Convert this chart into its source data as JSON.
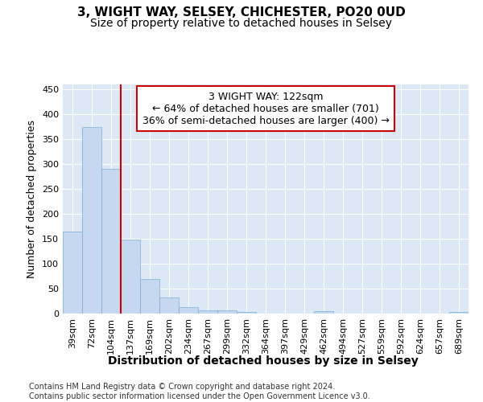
{
  "title": "3, WIGHT WAY, SELSEY, CHICHESTER, PO20 0UD",
  "subtitle": "Size of property relative to detached houses in Selsey",
  "xlabel": "Distribution of detached houses by size in Selsey",
  "ylabel": "Number of detached properties",
  "categories": [
    "39sqm",
    "72sqm",
    "104sqm",
    "137sqm",
    "169sqm",
    "202sqm",
    "234sqm",
    "267sqm",
    "299sqm",
    "332sqm",
    "364sqm",
    "397sqm",
    "429sqm",
    "462sqm",
    "494sqm",
    "527sqm",
    "559sqm",
    "592sqm",
    "624sqm",
    "657sqm",
    "689sqm"
  ],
  "values": [
    165,
    375,
    290,
    148,
    70,
    33,
    13,
    7,
    6,
    3,
    0,
    0,
    0,
    5,
    0,
    0,
    0,
    0,
    0,
    0,
    3
  ],
  "bar_color": "#c5d8f0",
  "bar_edge_color": "#7aadd4",
  "vline_x": 2.5,
  "vline_color": "#cc0000",
  "annotation_line1": "3 WIGHT WAY: 122sqm",
  "annotation_line2": "← 64% of detached houses are smaller (701)",
  "annotation_line3": "36% of semi-detached houses are larger (400) →",
  "annotation_box_color": "#ffffff",
  "annotation_box_edge": "#cc0000",
  "fig_bg_color": "#ffffff",
  "plot_bg_color": "#dce8f5",
  "grid_color": "#ffffff",
  "footer": "Contains HM Land Registry data © Crown copyright and database right 2024.\nContains public sector information licensed under the Open Government Licence v3.0.",
  "ylim": [
    0,
    460
  ],
  "yticks": [
    0,
    50,
    100,
    150,
    200,
    250,
    300,
    350,
    400,
    450
  ],
  "title_fontsize": 11,
  "subtitle_fontsize": 10,
  "xlabel_fontsize": 10,
  "ylabel_fontsize": 9,
  "tick_fontsize": 8,
  "annotation_fontsize": 9,
  "footer_fontsize": 7
}
